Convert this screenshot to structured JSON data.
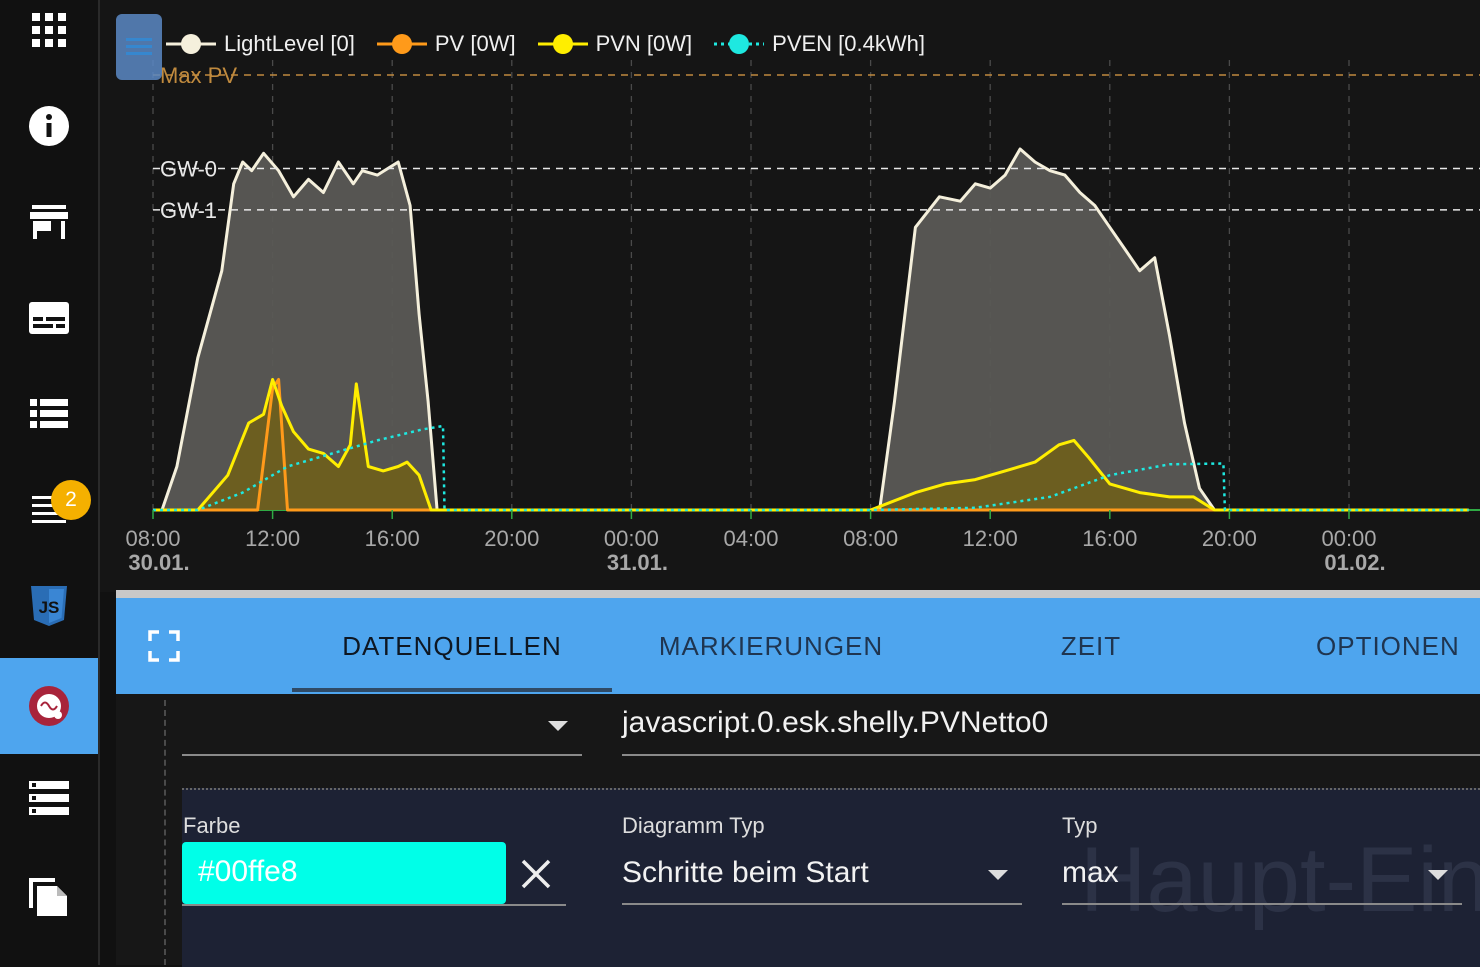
{
  "sidebar": {
    "items": [
      {
        "name": "apps-icon"
      },
      {
        "name": "info-icon"
      },
      {
        "name": "store-icon"
      },
      {
        "name": "subtitles-icon"
      },
      {
        "name": "list-icon"
      },
      {
        "name": "logs-icon",
        "badge": "2"
      },
      {
        "name": "javascript-icon"
      },
      {
        "name": "echarts-icon",
        "active": true
      },
      {
        "name": "server-list-icon"
      },
      {
        "name": "files-icon"
      }
    ],
    "badge_color": "#f5b000",
    "active_color": "#4ea5ee"
  },
  "legend": [
    {
      "label": "LightLevel [0]",
      "color": "#f5f0dc",
      "style": "solid"
    },
    {
      "label": "PV [0W]",
      "color": "#ff9a1a",
      "style": "solid"
    },
    {
      "label": "PVN [0W]",
      "color": "#ffee00",
      "style": "solid"
    },
    {
      "label": "PVEN [0.4kWh]",
      "color": "#1ee8e0",
      "style": "dotted"
    }
  ],
  "markings": {
    "max_pv": "Max PV",
    "gw0": "GW-0",
    "gw1": "GW-1"
  },
  "chart_data": {
    "type": "area",
    "x_ticks": [
      {
        "time": "08:00",
        "date": "30.01."
      },
      {
        "time": "12:00",
        "date": ""
      },
      {
        "time": "16:00",
        "date": ""
      },
      {
        "time": "20:00",
        "date": ""
      },
      {
        "time": "00:00",
        "date": "31.01."
      },
      {
        "time": "04:00",
        "date": ""
      },
      {
        "time": "08:00",
        "date": ""
      },
      {
        "time": "12:00",
        "date": ""
      },
      {
        "time": "16:00",
        "date": ""
      },
      {
        "time": "20:00",
        "date": ""
      },
      {
        "time": "00:00",
        "date": "01.02."
      }
    ],
    "x_range_hours": [
      0,
      44
    ],
    "y_range": [
      0,
      100
    ],
    "grid": true,
    "series": [
      {
        "name": "LightLevel [0]",
        "color": "#f5f0dc",
        "fill": "#5a5855",
        "x": [
          0,
          0.3,
          0.8,
          1.5,
          2.3,
          2.7,
          3.0,
          3.3,
          3.7,
          4.2,
          4.7,
          5.2,
          5.7,
          6.2,
          6.7,
          7.0,
          7.5,
          8.2,
          8.6,
          8.9,
          9.2,
          9.5,
          10,
          24,
          24.3,
          24.8,
          25.5,
          26.3,
          27.0,
          27.5,
          28.0,
          28.5,
          29.0,
          29.5,
          30.0,
          30.5,
          31.0,
          31.5,
          32.0,
          32.5,
          33.0,
          33.5,
          34.0,
          34.5,
          35.0,
          35.5,
          44
        ],
        "y": [
          0,
          0,
          10,
          35,
          55,
          75,
          80,
          78,
          82,
          78,
          72,
          76,
          73,
          80,
          75,
          78,
          77,
          80,
          70,
          45,
          25,
          0,
          0,
          0,
          0,
          25,
          65,
          72,
          71,
          75,
          74,
          77,
          83,
          80,
          78,
          77,
          73,
          70,
          65,
          60,
          55,
          58,
          40,
          20,
          5,
          0,
          0
        ]
      },
      {
        "name": "PV [0W]",
        "color": "#ff9a1a",
        "x": [
          0,
          3.5,
          4.0,
          4.2,
          4.5,
          44
        ],
        "y": [
          0,
          0,
          28,
          30,
          0,
          0
        ]
      },
      {
        "name": "PVN [0W]",
        "color": "#ffee00",
        "fill": "#6e5f1e",
        "x": [
          0,
          1.5,
          2.5,
          3.2,
          3.7,
          4.0,
          4.3,
          4.7,
          5.2,
          5.7,
          6.2,
          6.6,
          6.8,
          7.2,
          7.7,
          8.2,
          8.5,
          8.9,
          9.3,
          24,
          25.5,
          26.5,
          27.5,
          28.5,
          29.5,
          30.3,
          30.8,
          31.3,
          32,
          33,
          34,
          34.8,
          35.5,
          44
        ],
        "y": [
          0,
          0,
          8,
          20,
          22,
          30,
          24,
          18,
          14,
          13,
          10,
          15,
          29,
          10,
          9,
          10,
          11,
          8,
          0,
          0,
          4,
          6,
          7,
          9,
          11,
          15,
          16,
          12,
          6,
          4,
          3,
          3,
          0,
          0
        ]
      },
      {
        "name": "PVEN [0.4kWh]",
        "color": "#1ee8e0",
        "dashed": true,
        "x": [
          0,
          1.5,
          3.0,
          4.5,
          6.0,
          7.5,
          9.0,
          9.7,
          9.75,
          24,
          27.5,
          30.0,
          32.0,
          34.0,
          35.8,
          35.85,
          44
        ],
        "y": [
          0,
          0,
          4,
          10,
          13,
          16,
          18.5,
          19.3,
          0,
          0,
          0.5,
          3,
          8,
          10.5,
          10.7,
          0,
          0
        ]
      }
    ],
    "markings": [
      {
        "label": "Max PV",
        "y": 100,
        "color": "#c08a3e"
      },
      {
        "label": "GW-0",
        "y": 78.5,
        "color": "#e8e8e8"
      },
      {
        "label": "GW-1",
        "y": 69,
        "color": "#e8e8e8"
      }
    ]
  },
  "tabs": [
    {
      "label": "DATENQUELLEN",
      "active": true
    },
    {
      "label": "MARKIERUNGEN",
      "active": false
    },
    {
      "label": "ZEIT",
      "active": false
    },
    {
      "label": "OPTIONEN",
      "active": false
    }
  ],
  "datasource": {
    "object_id": "javascript.0.esk.shelly.PVNetto0"
  },
  "line_settings": {
    "farbe_label": "Farbe",
    "farbe_value": "#00ffe8",
    "diagramm_typ_label": "Diagramm Typ",
    "diagramm_typ_value": "Schritte beim Start",
    "typ_label": "Typ",
    "typ_value": "max"
  },
  "watermark": "Haupt-Ein"
}
